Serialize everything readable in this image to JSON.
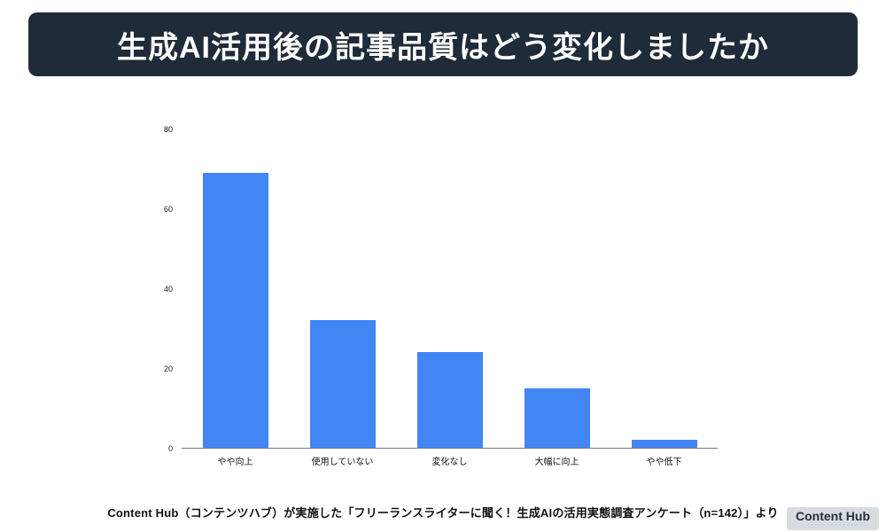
{
  "banner": {
    "title": "生成AI活用後の記事品質はどう変化しましたか",
    "background_color": "#1f2b38",
    "text_color": "#ffffff"
  },
  "chart_data": {
    "type": "bar",
    "categories": [
      "やや向上",
      "使用していない",
      "変化なし",
      "大幅に向上",
      "やや低下"
    ],
    "values": [
      69,
      32,
      24,
      15,
      2
    ],
    "title": "",
    "xlabel": "",
    "ylabel": "",
    "ylim": [
      0,
      80
    ],
    "yticks": [
      0,
      20,
      40,
      60,
      80
    ],
    "bar_color": "#4285f4",
    "grid": false,
    "legend": "none"
  },
  "footer": {
    "source": "Content Hub（コンテンツハブ）が実施した「フリーランスライターに聞く！生成AIの活用実態調査アンケート（n=142）」より"
  },
  "logo": {
    "text": "Content Hub",
    "tagline": "･････････････"
  }
}
